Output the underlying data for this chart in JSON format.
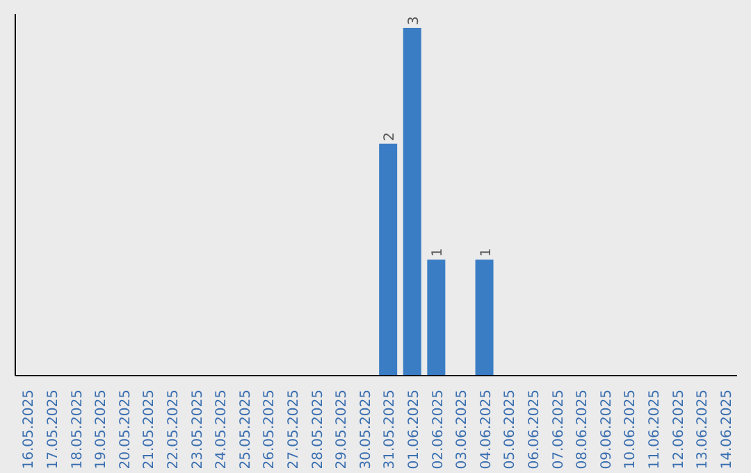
{
  "chart_data": {
    "type": "bar",
    "categories": [
      "16.05.2025",
      "17.05.2025",
      "18.05.2025",
      "19.05.2025",
      "20.05.2025",
      "21.05.2025",
      "22.05.2025",
      "23.05.2025",
      "24.05.2025",
      "25.05.2025",
      "26.05.2025",
      "27.05.2025",
      "28.05.2025",
      "29.05.2025",
      "30.05.2025",
      "31.05.2025",
      "01.06.2025",
      "02.06.2025",
      "03.06.2025",
      "04.06.2025",
      "05.06.2025",
      "06.06.2025",
      "07.06.2025",
      "08.06.2025",
      "09.06.2025",
      "10.06.2025",
      "11.06.2025",
      "12.06.2025",
      "13.06.2025",
      "14.06.2025"
    ],
    "values": [
      null,
      null,
      null,
      null,
      null,
      null,
      null,
      null,
      null,
      null,
      null,
      null,
      null,
      null,
      null,
      2,
      3,
      1,
      null,
      1,
      null,
      null,
      null,
      null,
      null,
      null,
      null,
      null,
      null,
      null
    ],
    "value_labels": [
      null,
      null,
      null,
      null,
      null,
      null,
      null,
      null,
      null,
      null,
      null,
      null,
      null,
      null,
      null,
      "2",
      "3",
      "1",
      null,
      "1",
      null,
      null,
      null,
      null,
      null,
      null,
      null,
      null,
      null,
      null
    ],
    "color": "#3a7dc4",
    "tick_labels": "x"
  }
}
